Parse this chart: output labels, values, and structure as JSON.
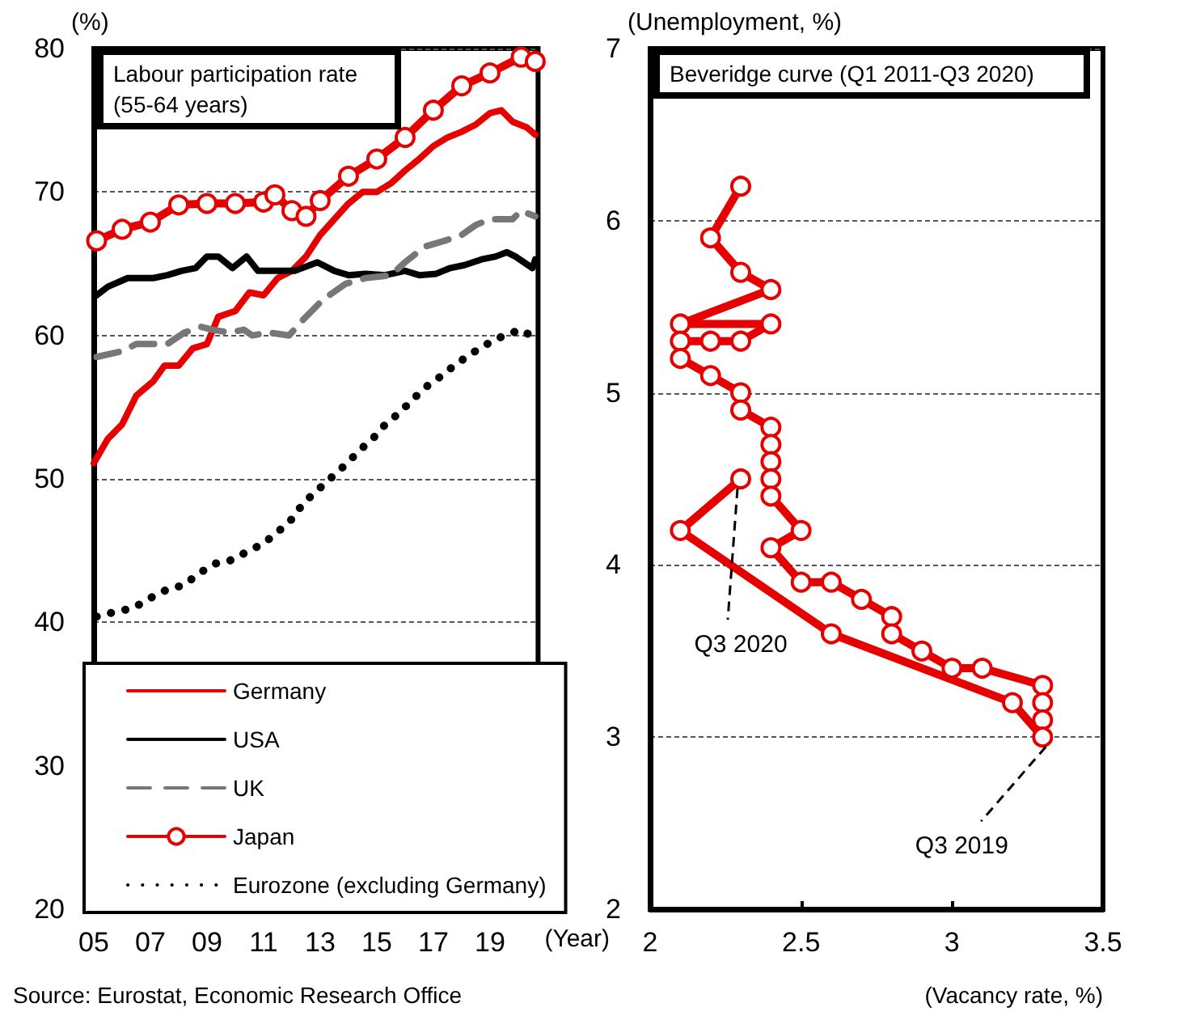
{
  "chart_data": [
    {
      "type": "line",
      "title": "Labour participation rate (55-64 years)",
      "xlabel": "(Year)",
      "ylabel": "(%)",
      "xlim": [
        2005,
        2020.7
      ],
      "xticks": [
        {
          "value": 2005,
          "label": "05"
        },
        {
          "value": 2007,
          "label": "07"
        },
        {
          "value": 2009,
          "label": "09"
        },
        {
          "value": 2011,
          "label": "11"
        },
        {
          "value": 2013,
          "label": "13"
        },
        {
          "value": 2015,
          "label": "15"
        },
        {
          "value": 2017,
          "label": "17"
        },
        {
          "value": 2019,
          "label": "19"
        }
      ],
      "ylim": [
        20,
        80
      ],
      "yticks": [
        20,
        30,
        40,
        50,
        60,
        70,
        80
      ],
      "grid": "y",
      "legend": "bottom",
      "series": [
        {
          "name": "Germany",
          "color": "#e60000",
          "line_style": "solid",
          "marker": "none",
          "x": [
            2005.0,
            2005.5,
            2006.0,
            2006.5,
            2007.1,
            2007.5,
            2008.0,
            2008.5,
            2009.0,
            2009.4,
            2010.0,
            2010.5,
            2011.0,
            2011.5,
            2012.0,
            2012.5,
            2013.0,
            2013.5,
            2014.0,
            2014.5,
            2015.0,
            2015.5,
            2016.0,
            2016.5,
            2017.0,
            2017.5,
            2018.0,
            2018.5,
            2019.0,
            2019.4,
            2019.8,
            2020.3,
            2020.6
          ],
          "values": [
            51.1,
            52.8,
            53.8,
            55.8,
            56.8,
            57.9,
            57.9,
            59.1,
            59.4,
            61.3,
            61.7,
            63.0,
            62.8,
            64.0,
            64.5,
            65.5,
            67.0,
            68.1,
            69.2,
            70.0,
            70.0,
            70.6,
            71.5,
            72.3,
            73.2,
            73.8,
            74.2,
            74.7,
            75.5,
            75.7,
            74.9,
            74.5,
            74.0
          ]
        },
        {
          "name": "USA",
          "color": "#000000",
          "line_style": "solid",
          "marker": "none",
          "x": [
            2005.1,
            2005.5,
            2006.2,
            2007.1,
            2007.6,
            2008.1,
            2008.6,
            2009.0,
            2009.4,
            2009.9,
            2010.4,
            2010.8,
            2012.1,
            2012.9,
            2013.5,
            2014.0,
            2014.6,
            2015.3,
            2016.0,
            2016.5,
            2017.1,
            2017.6,
            2018.1,
            2018.7,
            2019.2,
            2019.6,
            2019.9,
            2020.5,
            2020.6
          ],
          "values": [
            62.8,
            63.4,
            64.0,
            64.0,
            64.2,
            64.5,
            64.7,
            65.5,
            65.5,
            64.7,
            65.5,
            64.5,
            64.5,
            65.1,
            64.5,
            64.2,
            64.3,
            64.2,
            64.5,
            64.2,
            64.3,
            64.7,
            64.9,
            65.3,
            65.5,
            65.8,
            65.5,
            64.7,
            65.3
          ]
        },
        {
          "name": "UK",
          "color": "#777777",
          "line_style": "dashed",
          "marker": "none",
          "x": [
            2005.1,
            2006.0,
            2006.5,
            2007.1,
            2007.6,
            2008.2,
            2008.8,
            2009.2,
            2009.8,
            2010.3,
            2010.6,
            2011.2,
            2011.9,
            2012.4,
            2013.1,
            2013.9,
            2014.6,
            2015.5,
            2016.0,
            2016.7,
            2017.4,
            2018.0,
            2018.5,
            2019.0,
            2019.8,
            2020.1,
            2020.6
          ],
          "values": [
            58.5,
            58.9,
            59.4,
            59.4,
            59.4,
            60.2,
            60.6,
            60.4,
            60.2,
            60.4,
            60.0,
            60.2,
            60.0,
            61.1,
            62.5,
            63.6,
            64.0,
            64.2,
            65.1,
            66.2,
            66.6,
            67.0,
            67.7,
            68.1,
            68.1,
            68.7,
            68.3
          ]
        },
        {
          "name": "Japan",
          "color": "#e60000",
          "line_style": "solid",
          "marker": "circle",
          "x": [
            2005.1,
            2006.0,
            2007.0,
            2008.0,
            2009.0,
            2010.0,
            2011.0,
            2011.4,
            2012.0,
            2012.5,
            2013.0,
            2014.0,
            2015.0,
            2016.0,
            2017.0,
            2018.0,
            2019.0,
            2020.1,
            2020.6
          ],
          "values": [
            66.6,
            67.4,
            67.9,
            69.1,
            69.2,
            69.2,
            69.3,
            69.8,
            68.7,
            68.3,
            69.4,
            71.1,
            72.3,
            73.8,
            75.7,
            77.4,
            78.3,
            79.4,
            79.1
          ]
        },
        {
          "name": "Eurozone (excluding Germany)",
          "color": "#000000",
          "line_style": "dotted",
          "marker": "none",
          "x": [
            2005.1,
            2005.7,
            2006.4,
            2007.0,
            2007.6,
            2008.2,
            2008.7,
            2009.3,
            2009.8,
            2010.4,
            2011.0,
            2011.5,
            2012.0,
            2012.4,
            2012.9,
            2013.4,
            2013.9,
            2014.4,
            2014.9,
            2015.3,
            2015.8,
            2016.3,
            2016.8,
            2017.3,
            2017.8,
            2018.4,
            2018.9,
            2019.5,
            2020.1,
            2020.6
          ],
          "values": [
            40.4,
            40.7,
            41.0,
            41.7,
            42.3,
            42.6,
            43.4,
            44.1,
            44.3,
            44.9,
            45.5,
            46.3,
            47.2,
            48.3,
            49.2,
            50.1,
            51.0,
            52.0,
            52.9,
            53.8,
            54.6,
            55.6,
            56.5,
            57.2,
            58.0,
            58.8,
            59.4,
            60.0,
            60.4,
            59.8
          ]
        }
      ],
      "annotations": [
        "Source: Eurostat, Economic Research Office"
      ]
    },
    {
      "type": "line",
      "title": "Beveridge curve (Q1 2011-Q3 2020)",
      "xlabel": "(Vacancy rate, %)",
      "ylabel": "(Unemployment, %)",
      "xlim": [
        2,
        3.5
      ],
      "xticks": [
        2,
        2.5,
        3,
        3.5
      ],
      "ylim": [
        2,
        7
      ],
      "yticks": [
        2,
        3,
        4,
        5,
        6,
        7
      ],
      "grid": "y",
      "legend": false,
      "marker": "circle",
      "series": [
        {
          "color": "#e60000",
          "x": [
            2.3,
            2.2,
            2.3,
            2.4,
            2.1,
            2.4,
            2.3,
            2.2,
            2.1,
            2.1,
            2.2,
            2.3,
            2.3,
            2.4,
            2.4,
            2.4,
            2.4,
            2.4,
            2.5,
            2.4,
            2.5,
            2.6,
            2.7,
            2.8,
            2.8,
            2.9,
            3.0,
            3.1,
            3.3,
            3.3,
            3.3,
            3.3,
            3.2,
            2.6,
            2.1,
            2.3
          ],
          "values": [
            6.2,
            5.9,
            5.7,
            5.6,
            5.4,
            5.4,
            5.3,
            5.3,
            5.3,
            5.2,
            5.1,
            5.0,
            4.9,
            4.8,
            4.7,
            4.6,
            4.5,
            4.4,
            4.2,
            4.1,
            3.9,
            3.9,
            3.8,
            3.7,
            3.6,
            3.5,
            3.4,
            3.4,
            3.3,
            3.2,
            3.1,
            3.0,
            3.2,
            3.6,
            4.2,
            4.5
          ]
        }
      ],
      "annotations": [
        {
          "text": "Q3 2020",
          "x": 2.3,
          "y": 4.5
        },
        {
          "text": "Q3 2019",
          "x": 3.3,
          "y": 3.0
        }
      ]
    }
  ]
}
